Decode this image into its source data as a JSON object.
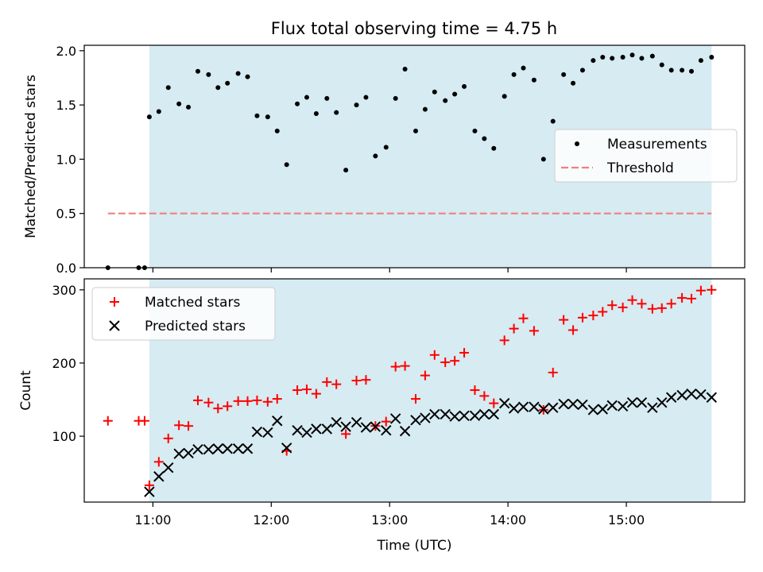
{
  "chart_data": [
    {
      "type": "scatter",
      "title": "Flux total observing time = 4.75 h",
      "xlabel": "",
      "ylabel": "Matched/Predicted stars",
      "ylim": [
        0,
        2.05
      ],
      "xlim": [
        10.42,
        16.0
      ],
      "yticks": [
        "0.0",
        "0.5",
        "1.0",
        "1.5",
        "2.0"
      ],
      "ytick_values": [
        0,
        0.5,
        1.0,
        1.5,
        2.0
      ],
      "shaded_region": {
        "from": 10.97,
        "to": 15.72,
        "color": "#add8e6"
      },
      "legend_position": "center-right",
      "colors": {
        "measurements": "#000000",
        "threshold": "#f08080"
      },
      "series": [
        {
          "name": "Measurements",
          "marker": "dot",
          "x": [
            10.62,
            10.88,
            10.93,
            10.97,
            11.05,
            11.13,
            11.22,
            11.3,
            11.38,
            11.47,
            11.55,
            11.63,
            11.72,
            11.8,
            11.88,
            11.97,
            12.05,
            12.13,
            12.22,
            12.3,
            12.38,
            12.47,
            12.55,
            12.63,
            12.72,
            12.8,
            12.88,
            12.97,
            13.05,
            13.13,
            13.22,
            13.3,
            13.38,
            13.47,
            13.55,
            13.63,
            13.72,
            13.8,
            13.88,
            13.97,
            14.05,
            14.13,
            14.22,
            14.3,
            14.38,
            14.47,
            14.55,
            14.63,
            14.72,
            14.8,
            14.88,
            14.97,
            15.05,
            15.13,
            15.22,
            15.3,
            15.38,
            15.47,
            15.55,
            15.63,
            15.72
          ],
          "y": [
            0.0,
            0.0,
            0.0,
            1.39,
            1.44,
            1.66,
            1.51,
            1.48,
            1.81,
            1.78,
            1.66,
            1.7,
            1.79,
            1.76,
            1.4,
            1.39,
            1.26,
            0.95,
            1.51,
            1.57,
            1.42,
            1.56,
            1.43,
            0.9,
            1.5,
            1.57,
            1.03,
            1.11,
            1.56,
            1.83,
            1.26,
            1.46,
            1.62,
            1.54,
            1.6,
            1.67,
            1.26,
            1.19,
            1.1,
            1.58,
            1.78,
            1.84,
            1.73,
            1.0,
            1.35,
            1.78,
            1.7,
            1.82,
            1.91,
            1.94,
            1.93,
            1.94,
            1.96,
            1.93,
            1.95,
            1.87,
            1.82,
            1.82,
            1.81,
            1.91,
            1.94
          ]
        },
        {
          "name": "Threshold",
          "marker": "dashed-line",
          "x": [
            10.62,
            15.72
          ],
          "y": [
            0.5,
            0.5
          ]
        }
      ]
    },
    {
      "type": "scatter",
      "title": "",
      "xlabel": "Time (UTC)",
      "ylabel": "Count",
      "ylim": [
        10,
        315
      ],
      "xlim": [
        10.42,
        16.0
      ],
      "xticks": [
        "11:00",
        "12:00",
        "13:00",
        "14:00",
        "15:00"
      ],
      "xtick_values": [
        11,
        12,
        13,
        14,
        15
      ],
      "yticks": [
        "100",
        "200",
        "300"
      ],
      "ytick_values": [
        100,
        200,
        300
      ],
      "shaded_region": {
        "from": 10.97,
        "to": 15.72,
        "color": "#add8e6"
      },
      "legend_position": "upper-left",
      "colors": {
        "matched": "#ff0000",
        "predicted": "#000000"
      },
      "series": [
        {
          "name": "Matched stars",
          "marker": "plus",
          "x": [
            10.62,
            10.88,
            10.93,
            10.97,
            11.05,
            11.13,
            11.22,
            11.3,
            11.38,
            11.47,
            11.55,
            11.63,
            11.72,
            11.8,
            11.88,
            11.97,
            12.05,
            12.13,
            12.22,
            12.3,
            12.38,
            12.47,
            12.55,
            12.63,
            12.72,
            12.8,
            12.88,
            12.97,
            13.05,
            13.13,
            13.22,
            13.3,
            13.38,
            13.47,
            13.55,
            13.63,
            13.72,
            13.8,
            13.88,
            13.97,
            14.05,
            14.13,
            14.22,
            14.3,
            14.38,
            14.47,
            14.55,
            14.63,
            14.72,
            14.8,
            14.88,
            14.97,
            15.05,
            15.13,
            15.22,
            15.3,
            15.38,
            15.47,
            15.55,
            15.63,
            15.72
          ],
          "y": [
            121,
            121,
            121,
            33,
            65,
            97,
            115,
            114,
            149,
            146,
            138,
            141,
            148,
            148,
            149,
            147,
            151,
            80,
            163,
            164,
            158,
            174,
            171,
            103,
            176,
            177,
            114,
            120,
            195,
            196,
            151,
            183,
            211,
            201,
            203,
            214,
            163,
            155,
            145,
            231,
            247,
            261,
            244,
            136,
            187,
            259,
            245,
            262,
            265,
            270,
            279,
            276,
            286,
            281,
            274,
            275,
            281,
            289,
            288,
            299,
            300
          ]
        },
        {
          "name": "Predicted stars",
          "marker": "x",
          "x": [
            10.97,
            11.05,
            11.13,
            11.22,
            11.3,
            11.38,
            11.47,
            11.55,
            11.63,
            11.72,
            11.8,
            11.88,
            11.97,
            12.05,
            12.13,
            12.22,
            12.3,
            12.38,
            12.47,
            12.55,
            12.63,
            12.72,
            12.8,
            12.88,
            12.97,
            13.05,
            13.13,
            13.22,
            13.3,
            13.38,
            13.47,
            13.55,
            13.63,
            13.72,
            13.8,
            13.88,
            13.97,
            14.05,
            14.13,
            14.22,
            14.3,
            14.38,
            14.47,
            14.55,
            14.63,
            14.72,
            14.8,
            14.88,
            14.97,
            15.05,
            15.13,
            15.22,
            15.3,
            15.38,
            15.47,
            15.55,
            15.63,
            15.72
          ],
          "y": [
            24,
            45,
            57,
            76,
            77,
            82,
            82,
            83,
            83,
            83,
            83,
            106,
            105,
            121,
            84,
            108,
            105,
            110,
            110,
            119,
            113,
            119,
            112,
            113,
            108,
            124,
            107,
            122,
            125,
            130,
            130,
            127,
            128,
            128,
            130,
            130,
            145,
            138,
            140,
            140,
            137,
            139,
            144,
            144,
            143,
            136,
            137,
            142,
            141,
            146,
            146,
            139,
            146,
            153,
            156,
            158,
            157,
            153
          ]
        }
      ]
    }
  ]
}
